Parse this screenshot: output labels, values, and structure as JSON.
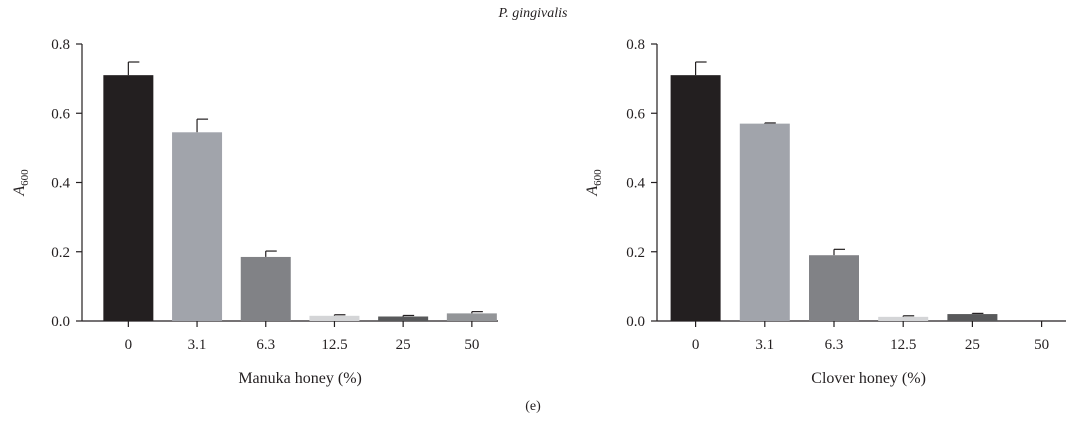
{
  "figure": {
    "title": "P. gingivalis",
    "caption": "(e)"
  },
  "chart_data": [
    {
      "type": "bar",
      "categories": [
        "0",
        "3.1",
        "6.3",
        "12.5",
        "25",
        "50"
      ],
      "values": [
        0.71,
        0.545,
        0.185,
        0.015,
        0.013,
        0.022
      ],
      "errors": [
        0.038,
        0.038,
        0.017,
        0.003,
        0.003,
        0.005
      ],
      "xlabel": "Manuka honey (%)",
      "ylabel": "A",
      "ylabel_sub": "600",
      "ylim": [
        0,
        0.8
      ],
      "yticks": [
        "0.0",
        "0.2",
        "0.4",
        "0.6",
        "0.8"
      ],
      "bar_colors": [
        "#231f20",
        "#a1a4ab",
        "#818286",
        "#d4d5d7",
        "#58595b",
        "#939598"
      ],
      "grid": false
    },
    {
      "type": "bar",
      "categories": [
        "0",
        "3.1",
        "6.3",
        "12.5",
        "25",
        "50"
      ],
      "values": [
        0.71,
        0.57,
        0.19,
        0.012,
        0.02,
        0.0
      ],
      "errors": [
        0.038,
        0.002,
        0.017,
        0.003,
        0.002,
        0.0
      ],
      "xlabel": "Clover honey (%)",
      "ylabel": "A",
      "ylabel_sub": "600",
      "ylim": [
        0,
        0.8
      ],
      "yticks": [
        "0.0",
        "0.2",
        "0.4",
        "0.6",
        "0.8"
      ],
      "bar_colors": [
        "#231f20",
        "#a1a4ab",
        "#818286",
        "#d4d5d7",
        "#58595b",
        "#939598"
      ],
      "grid": false
    }
  ]
}
